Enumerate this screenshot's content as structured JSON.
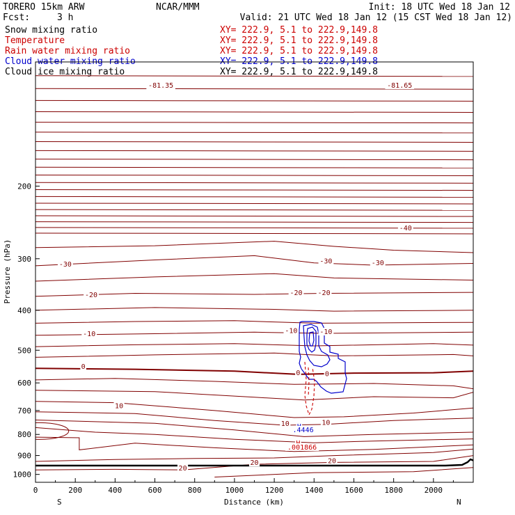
{
  "header": {
    "model": "TORERO  15km ARW",
    "center": "NCAR/MMM",
    "init": "Init: 18 UTC Wed 18 Jan 12",
    "fcst_label": "Fcst:",
    "fcst_value": "3 h",
    "valid": "Valid: 21 UTC Wed 18 Jan 12 (15 CST Wed 18 Jan 12)"
  },
  "fields": [
    {
      "name": "Snow mixing ratio",
      "xy": "XY= 222.9,  5.1 to 222.9,149.8",
      "color": "#000000"
    },
    {
      "name": "Temperature",
      "xy": "XY= 222.9,  5.1 to 222.9,149.8",
      "color": "#cc0000"
    },
    {
      "name": "Rain water mixing ratio",
      "xy": "XY= 222.9,  5.1 to 222.9,149.8",
      "color": "#cc0000"
    },
    {
      "name": "Cloud water mixing ratio",
      "xy": "XY= 222.9,  5.1 to 222.9,149.8",
      "color": "#0000cc"
    },
    {
      "name": "Cloud ice mixing ratio",
      "xy": "XY= 222.9,  5.1 to 222.9,149.8",
      "color": "#000000"
    }
  ],
  "colors": {
    "temperature": "#800000",
    "cloud_water": "#0000cc",
    "rain_water": "#cc0000",
    "ground": "#000000"
  },
  "chart_data": {
    "type": "contour",
    "xlabel": "Distance (km)",
    "ylabel": "Pressure (hPa)",
    "xlim": [
      0,
      2200
    ],
    "ylim": [
      1045,
      100
    ],
    "y_scale": "log",
    "x_ticks": [
      0,
      200,
      400,
      600,
      800,
      1000,
      1200,
      1400,
      1600,
      1800,
      2000
    ],
    "y_ticks": [
      200,
      300,
      400,
      500,
      600,
      700,
      800,
      900,
      1000
    ],
    "x_endpoints": [
      "S",
      "N"
    ],
    "contour_labels": [
      {
        "text": "-81.35",
        "x": 630,
        "p": 115,
        "color": "temperature"
      },
      {
        "text": "-81.65",
        "x": 1830,
        "p": 115,
        "color": "temperature"
      },
      {
        "text": "-40",
        "x": 1860,
        "p": 255,
        "color": "temperature"
      },
      {
        "text": "-30",
        "x": 150,
        "p": 312,
        "color": "temperature"
      },
      {
        "text": "-30",
        "x": 1460,
        "p": 307,
        "color": "temperature"
      },
      {
        "text": "-30",
        "x": 1720,
        "p": 310,
        "color": "temperature"
      },
      {
        "text": "-20",
        "x": 280,
        "p": 370,
        "color": "temperature"
      },
      {
        "text": "-20",
        "x": 1310,
        "p": 366,
        "color": "temperature"
      },
      {
        "text": "-20",
        "x": 1450,
        "p": 366,
        "color": "temperature"
      },
      {
        "text": "-10",
        "x": 270,
        "p": 460,
        "color": "temperature"
      },
      {
        "text": "-10",
        "x": 1285,
        "p": 452,
        "color": "temperature"
      },
      {
        "text": "-10",
        "x": 1460,
        "p": 455,
        "color": "temperature"
      },
      {
        "text": "0",
        "x": 240,
        "p": 553,
        "color": "temperature"
      },
      {
        "text": "0",
        "x": 1320,
        "p": 572,
        "color": "temperature"
      },
      {
        "text": "0",
        "x": 1465,
        "p": 576,
        "color": "temperature"
      },
      {
        "text": "10",
        "x": 420,
        "p": 688,
        "color": "temperature"
      },
      {
        "text": "10",
        "x": 1255,
        "p": 760,
        "color": "temperature"
      },
      {
        "text": "10",
        "x": 1460,
        "p": 756,
        "color": "temperature"
      },
      {
        "text": "20",
        "x": 740,
        "p": 975,
        "color": "temperature"
      },
      {
        "text": "20",
        "x": 1100,
        "p": 945,
        "color": "temperature"
      },
      {
        "text": "20",
        "x": 1490,
        "p": 935,
        "color": "temperature"
      },
      {
        "text": "H",
        "x": 1325,
        "p": 772,
        "color": "cloud_water"
      },
      {
        "text": ".4446",
        "x": 1345,
        "p": 787,
        "color": "cloud_water"
      },
      {
        "text": "H",
        "x": 1320,
        "p": 848,
        "color": "rain_water"
      },
      {
        "text": ".001866",
        "x": 1340,
        "p": 867,
        "color": "rain_water"
      }
    ]
  }
}
